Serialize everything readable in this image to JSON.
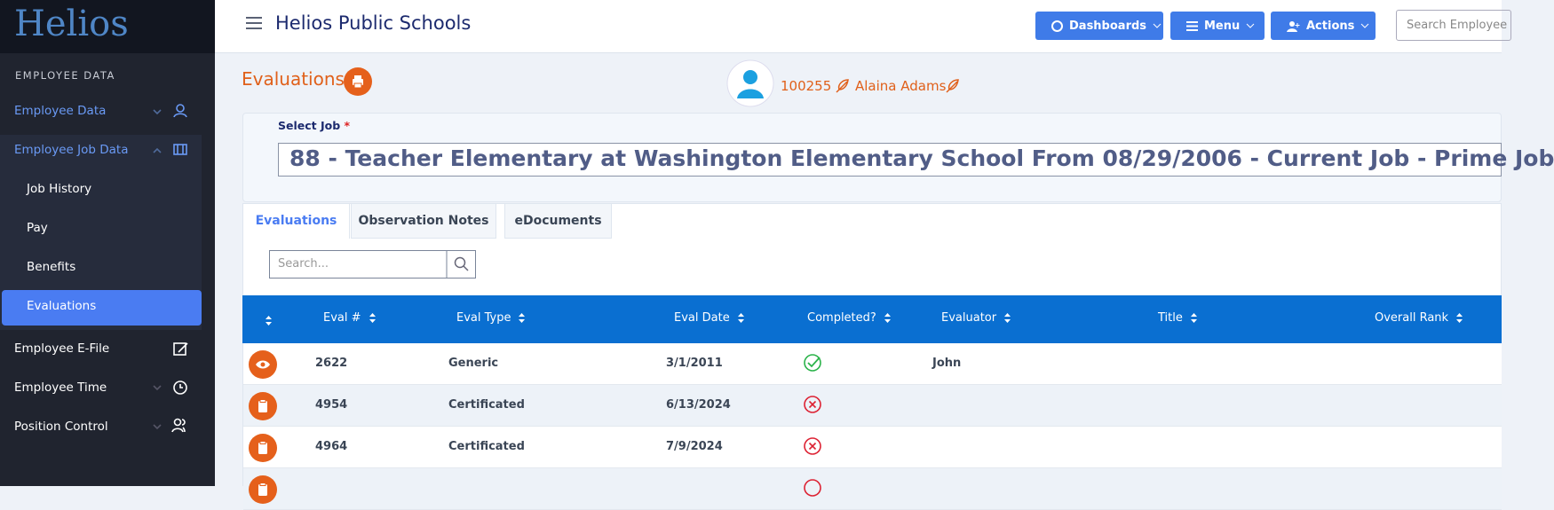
{
  "sidebar": {
    "logo": "Helios",
    "section": "EMPLOYEE DATA",
    "items": [
      "Employee Data",
      "Employee Job Data"
    ],
    "subitems": [
      "Job History",
      "Pay",
      "Benefits",
      "Evaluations"
    ],
    "items2": [
      "Employee E-File",
      "Employee Time",
      "Position Control"
    ]
  },
  "header": {
    "title": "Helios Public Schools",
    "buttons": [
      "Dashboards",
      "Menu",
      "Actions"
    ],
    "search_placeholder": "Search Employee"
  },
  "page": {
    "title": "Evaluations",
    "employee_id": "100255",
    "employee_name": "Alaina Adams"
  },
  "job": {
    "label": "Select Job",
    "required": "*",
    "value": "88 - Teacher Elementary at Washington Elementary School From 08/29/2006 - Current Job - Prime Job"
  },
  "tabs": [
    "Evaluations",
    "Observation Notes",
    "eDocuments"
  ],
  "table": {
    "search_placeholder": "Search...",
    "columns": [
      "Eval #",
      "Eval Type",
      "Eval Date",
      "Completed?",
      "Evaluator",
      "Title",
      "Overall Rank"
    ],
    "rows": [
      {
        "eval": "2622",
        "type": "Generic",
        "date": "3/1/2011",
        "completed": true,
        "evaluator": "John"
      },
      {
        "eval": "4954",
        "type": "Certificated",
        "date": "6/13/2024",
        "completed": false
      },
      {
        "eval": "4964",
        "type": "Certificated",
        "date": "7/9/2024",
        "completed": false
      }
    ]
  }
}
